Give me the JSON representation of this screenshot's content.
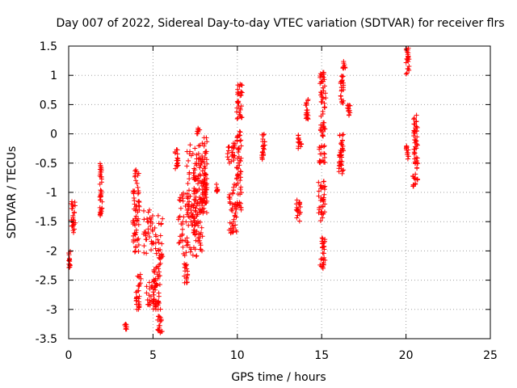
{
  "chart_data": {
    "type": "scatter",
    "title": "Day 007 of 2022, Sidereal Day-to-day VTEC variation (SDTVAR) for receiver flrs",
    "xlabel": "GPS time / hours",
    "ylabel": "SDTVAR / TECUs",
    "xlim": [
      0,
      25
    ],
    "ylim": [
      -3.5,
      1.5
    ],
    "xticks": [
      0,
      5,
      10,
      15,
      20,
      25
    ],
    "xtick_labels": [
      "0",
      "5",
      "10",
      "15",
      "20",
      "25"
    ],
    "yticks": [
      1.5,
      1,
      0.5,
      0,
      -0.5,
      -1,
      -1.5,
      -2,
      -2.5,
      -3,
      -3.5
    ],
    "ytick_labels": [
      "1.5",
      "1",
      "0.5",
      "0",
      "-0.5",
      "-1",
      "-1.5",
      "-2",
      "-2.5",
      "-3",
      "-3.5"
    ],
    "grid": true,
    "marker": "+",
    "color": "#ff0000",
    "series": [
      {
        "name": "SDTVAR",
        "clusters": [
          {
            "x": [
              0.0,
              0.1
            ],
            "y": [
              -2.3,
              -2.0
            ]
          },
          {
            "x": [
              0.15,
              0.4
            ],
            "y": [
              -1.7,
              -1.15
            ]
          },
          {
            "x": [
              1.85,
              2.0
            ],
            "y": [
              -1.4,
              -0.5
            ]
          },
          {
            "x": [
              3.3,
              3.45
            ],
            "y": [
              -3.4,
              -3.25
            ]
          },
          {
            "x": [
              3.8,
              4.2
            ],
            "y": [
              -2.05,
              -0.6
            ]
          },
          {
            "x": [
              4.0,
              4.3
            ],
            "y": [
              -3.0,
              -2.4
            ]
          },
          {
            "x": [
              4.45,
              5.6
            ],
            "y": [
              -2.05,
              -1.3
            ]
          },
          {
            "x": [
              4.6,
              5.2
            ],
            "y": [
              -3.0,
              -2.5
            ]
          },
          {
            "x": [
              5.0,
              5.45
            ],
            "y": [
              -3.0,
              -2.2
            ]
          },
          {
            "x": [
              5.25,
              5.55
            ],
            "y": [
              -3.4,
              -3.1
            ]
          },
          {
            "x": [
              5.35,
              5.6
            ],
            "y": [
              -2.15,
              -2.05
            ]
          },
          {
            "x": [
              6.3,
              6.5
            ],
            "y": [
              -0.6,
              -0.25
            ]
          },
          {
            "x": [
              6.5,
              7.6
            ],
            "y": [
              -2.1,
              -1.0
            ]
          },
          {
            "x": [
              6.85,
              7.05
            ],
            "y": [
              -2.55,
              -2.2
            ]
          },
          {
            "x": [
              7.0,
              8.0
            ],
            "y": [
              -1.5,
              -0.1
            ]
          },
          {
            "x": [
              7.4,
              7.95
            ],
            "y": [
              -2.0,
              -0.4
            ]
          },
          {
            "x": [
              7.6,
              7.8
            ],
            "y": [
              0.0,
              0.1
            ]
          },
          {
            "x": [
              8.0,
              8.2
            ],
            "y": [
              -1.35,
              -0.05
            ]
          },
          {
            "x": [
              8.75,
              8.85
            ],
            "y": [
              -1.0,
              -0.85
            ]
          },
          {
            "x": [
              9.5,
              9.95
            ],
            "y": [
              -1.7,
              -0.85
            ]
          },
          {
            "x": [
              9.4,
              9.9
            ],
            "y": [
              -0.5,
              -0.15
            ]
          },
          {
            "x": [
              9.95,
              10.25
            ],
            "y": [
              -1.3,
              0.05
            ]
          },
          {
            "x": [
              9.95,
              10.3
            ],
            "y": [
              0.25,
              0.9
            ]
          },
          {
            "x": [
              11.45,
              11.65
            ],
            "y": [
              -0.45,
              0.0
            ]
          },
          {
            "x": [
              13.5,
              13.75
            ],
            "y": [
              -1.5,
              -1.1
            ]
          },
          {
            "x": [
              13.6,
              13.8
            ],
            "y": [
              -0.25,
              0.0
            ]
          },
          {
            "x": [
              14.05,
              14.2
            ],
            "y": [
              0.25,
              0.65
            ]
          },
          {
            "x": [
              14.9,
              15.2
            ],
            "y": [
              -2.3,
              -2.1
            ]
          },
          {
            "x": [
              14.8,
              15.2
            ],
            "y": [
              -1.5,
              -0.8
            ]
          },
          {
            "x": [
              14.85,
              15.2
            ],
            "y": [
              -0.5,
              -0.2
            ]
          },
          {
            "x": [
              14.9,
              15.2
            ],
            "y": [
              -0.05,
              0.2
            ]
          },
          {
            "x": [
              14.9,
              15.25
            ],
            "y": [
              0.3,
              1.05
            ]
          },
          {
            "x": [
              15.0,
              15.2
            ],
            "y": [
              -2.05,
              -1.75
            ]
          },
          {
            "x": [
              16.0,
              16.3
            ],
            "y": [
              -0.7,
              -0.35
            ]
          },
          {
            "x": [
              16.05,
              16.3
            ],
            "y": [
              -0.4,
              0.0
            ]
          },
          {
            "x": [
              16.1,
              16.3
            ],
            "y": [
              0.5,
              1.0
            ]
          },
          {
            "x": [
              16.25,
              16.4
            ],
            "y": [
              1.1,
              1.25
            ]
          },
          {
            "x": [
              16.5,
              16.7
            ],
            "y": [
              0.3,
              0.5
            ]
          },
          {
            "x": [
              20.0,
              20.2
            ],
            "y": [
              1.0,
              1.5
            ]
          },
          {
            "x": [
              20.0,
              20.2
            ],
            "y": [
              -0.45,
              -0.2
            ]
          },
          {
            "x": [
              20.4,
              20.7
            ],
            "y": [
              -0.9,
              -0.4
            ]
          },
          {
            "x": [
              20.45,
              20.7
            ],
            "y": [
              -0.35,
              0.35
            ]
          }
        ]
      }
    ]
  }
}
